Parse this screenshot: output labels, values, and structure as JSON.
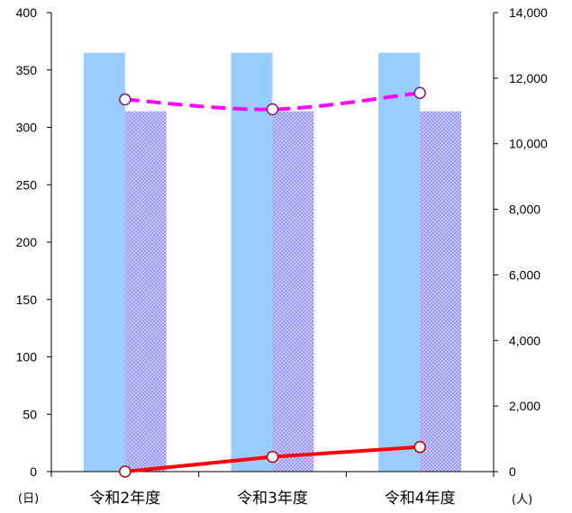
{
  "chart_data": {
    "type": "bar",
    "categories": [
      "令和2年度",
      "令和3年度",
      "令和4年度"
    ],
    "y_left": {
      "unit": "(日)",
      "range": [
        0,
        400
      ],
      "ticks": [
        0,
        50,
        100,
        150,
        200,
        250,
        300,
        350,
        400
      ],
      "tick_labels": [
        "0",
        "50",
        "100",
        "150",
        "200",
        "250",
        "300",
        "350",
        "400"
      ]
    },
    "y_right": {
      "unit": "(人)",
      "range": [
        0,
        14000
      ],
      "ticks": [
        0,
        2000,
        4000,
        6000,
        8000,
        10000,
        12000,
        14000
      ],
      "tick_labels": [
        "0",
        "2,000",
        "4,000",
        "6,000",
        "8,000",
        "10,000",
        "12,000",
        "14,000"
      ]
    },
    "bar_series": [
      {
        "axis": "left",
        "color": "#99ccff",
        "pattern": "solid",
        "values": [
          365,
          365,
          365
        ]
      },
      {
        "axis": "left",
        "color": "#9999ff",
        "pattern": "dotted",
        "values": [
          314,
          314,
          314
        ]
      }
    ],
    "line_series": [
      {
        "axis": "right",
        "color": "#ff00ff",
        "style": "dashed",
        "values": [
          11350,
          11050,
          11550
        ]
      },
      {
        "axis": "right",
        "color": "#ff0000",
        "style": "solid",
        "values": [
          0,
          450,
          750
        ]
      }
    ],
    "grid": false,
    "legend": "none"
  }
}
